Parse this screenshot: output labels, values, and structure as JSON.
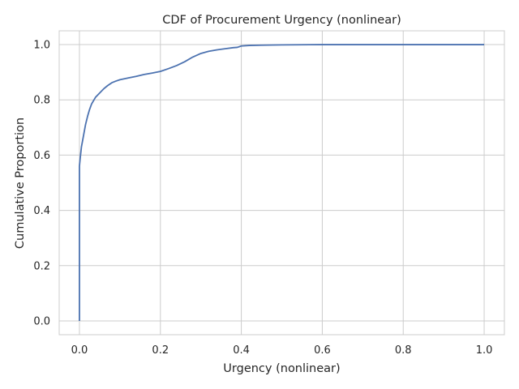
{
  "chart_data": {
    "type": "line",
    "title": "CDF of Procurement Urgency (nonlinear)",
    "xlabel": "Urgency (nonlinear)",
    "ylabel": "Cumulative Proportion",
    "xlim": [
      -0.05,
      1.05
    ],
    "ylim": [
      -0.05,
      1.05
    ],
    "x_ticks": [
      0.0,
      0.2,
      0.4,
      0.6,
      0.8,
      1.0
    ],
    "x_tick_labels": [
      "0.0",
      "0.2",
      "0.4",
      "0.6",
      "0.8",
      "1.0"
    ],
    "y_ticks": [
      0.0,
      0.2,
      0.4,
      0.6,
      0.8,
      1.0
    ],
    "y_tick_labels": [
      "0.0",
      "0.2",
      "0.4",
      "0.6",
      "0.8",
      "1.0"
    ],
    "grid": true,
    "line_color": "#4c72b0",
    "series": [
      {
        "x": [
          0.0,
          0.0,
          0.002,
          0.005,
          0.01,
          0.015,
          0.02,
          0.025,
          0.03,
          0.04,
          0.05,
          0.06,
          0.07,
          0.08,
          0.09,
          0.1,
          0.12,
          0.14,
          0.16,
          0.18,
          0.2,
          0.22,
          0.24,
          0.26,
          0.28,
          0.3,
          0.32,
          0.34,
          0.36,
          0.38,
          0.39,
          0.4,
          0.42,
          0.45,
          0.5,
          0.6,
          0.7,
          0.8,
          0.9,
          1.0
        ],
        "y": [
          0.0,
          0.56,
          0.59,
          0.63,
          0.67,
          0.71,
          0.74,
          0.765,
          0.785,
          0.81,
          0.825,
          0.84,
          0.852,
          0.862,
          0.868,
          0.873,
          0.879,
          0.885,
          0.892,
          0.897,
          0.903,
          0.913,
          0.924,
          0.938,
          0.955,
          0.968,
          0.976,
          0.981,
          0.985,
          0.989,
          0.99,
          0.995,
          0.997,
          0.998,
          0.999,
          1.0,
          1.0,
          1.0,
          1.0,
          1.0
        ]
      }
    ]
  }
}
